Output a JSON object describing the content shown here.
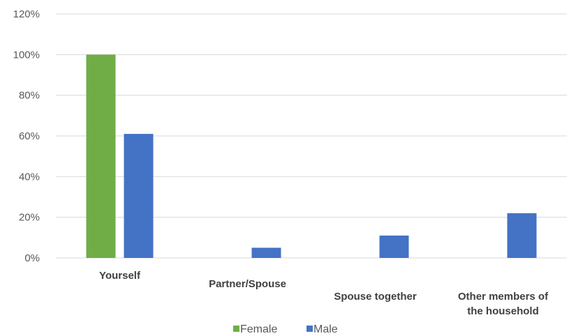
{
  "chart_data": {
    "type": "bar",
    "categories": [
      "Yourself",
      "Partner/Spouse",
      "Spouse together",
      "Other members of the household"
    ],
    "category_lines": [
      [
        "Yourself"
      ],
      [
        "Partner/Spouse"
      ],
      [
        "Spouse together"
      ],
      [
        "Other members of",
        "the household"
      ]
    ],
    "series": [
      {
        "name": "Female",
        "color": "#70ad47",
        "values": [
          100,
          0,
          0,
          0
        ]
      },
      {
        "name": "Male",
        "color": "#4472c4",
        "values": [
          61,
          5,
          11,
          22
        ]
      }
    ],
    "y_ticks": [
      "0%",
      "20%",
      "40%",
      "60%",
      "80%",
      "100%",
      "120%"
    ],
    "ylim": [
      0,
      120
    ],
    "grid": true,
    "legend_position": "bottom"
  }
}
